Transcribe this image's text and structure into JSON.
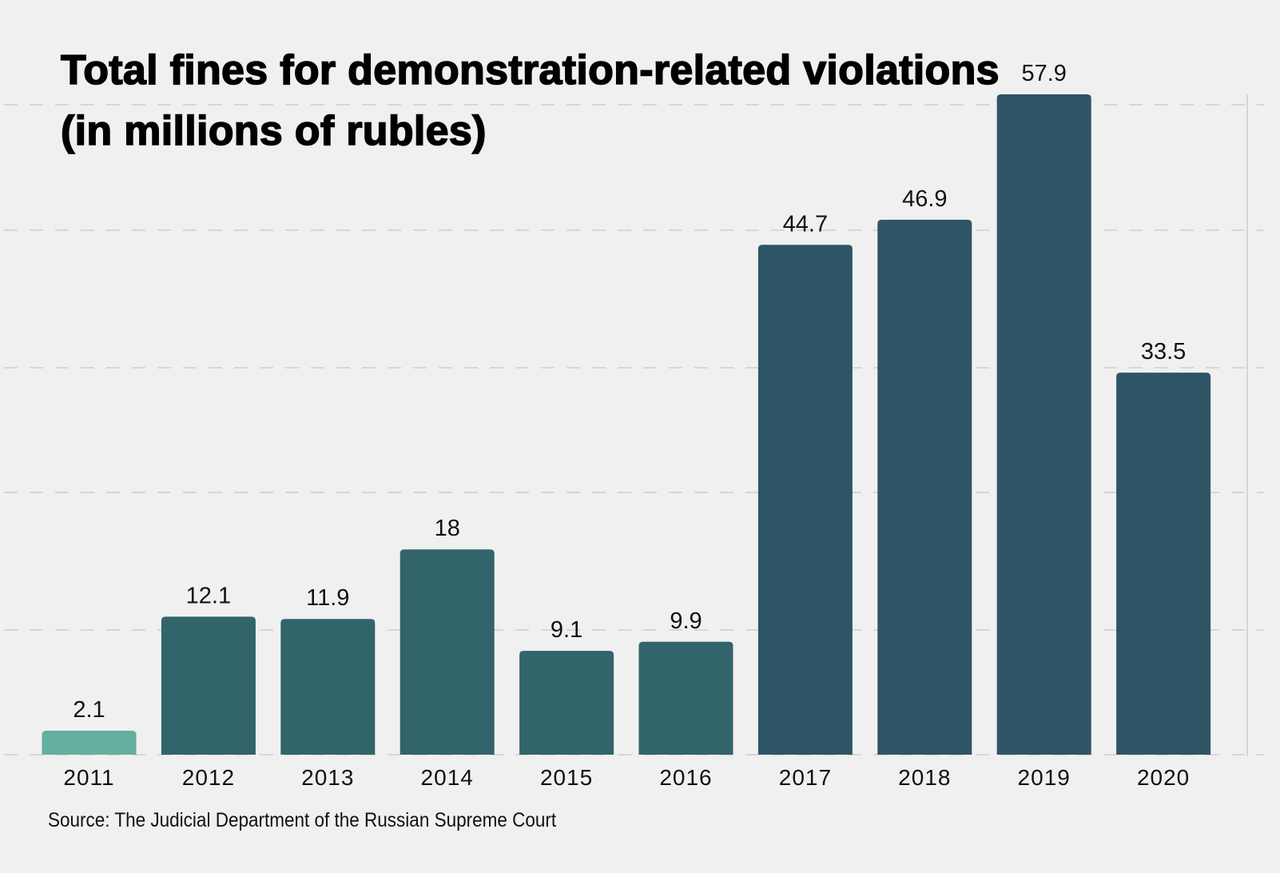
{
  "chart_data": {
    "type": "bar",
    "title": "Total fines for demonstration-related violations (in millions of rubles)",
    "xlabel": "",
    "ylabel": "",
    "categories": [
      "2011",
      "2012",
      "2013",
      "2014",
      "2015",
      "2016",
      "2017",
      "2018",
      "2019",
      "2020"
    ],
    "values": [
      2.1,
      12.1,
      11.9,
      18,
      9.1,
      9.9,
      44.7,
      46.9,
      57.9,
      33.5
    ],
    "value_labels": [
      "2.1",
      "12.1",
      "11.9",
      "18",
      "9.1",
      "9.9",
      "44.7",
      "46.9",
      "57.9",
      "33.5"
    ],
    "ylim": [
      0,
      57.9
    ],
    "grid": true,
    "legend": "none",
    "colors": [
      "#63afa0",
      "#32646b",
      "#32646b",
      "#32646b",
      "#32646b",
      "#32646b",
      "#2e5566",
      "#2e5566",
      "#2e5566",
      "#2e5566"
    ],
    "source": "Source: The Judicial Department of the Russian Supreme Court"
  }
}
